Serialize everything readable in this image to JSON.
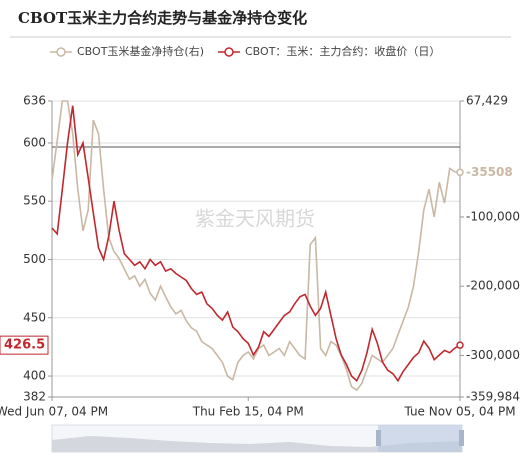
{
  "chart_data": {
    "type": "line",
    "title": "CBOT玉米主力合约走势与基金净持仓变化",
    "watermark": "紫金天风期货",
    "categories": [
      "Wed Jun 07, 04 PM",
      null,
      null,
      null,
      null,
      null,
      null,
      null,
      null,
      null,
      null,
      null,
      null,
      null,
      null,
      null,
      null,
      null,
      null,
      null,
      null,
      null,
      null,
      null,
      null,
      null,
      null,
      null,
      null,
      null,
      null,
      null,
      null,
      null,
      null,
      null,
      null,
      null,
      "Thu Feb 15, 04 PM",
      null,
      null,
      null,
      null,
      null,
      null,
      null,
      null,
      null,
      null,
      null,
      null,
      null,
      null,
      null,
      null,
      null,
      null,
      null,
      null,
      null,
      null,
      null,
      null,
      null,
      null,
      null,
      null,
      null,
      null,
      null,
      null,
      null,
      null,
      null,
      null,
      null,
      null,
      null,
      null,
      "Tue Nov 05, 04 PM"
    ],
    "series": [
      {
        "name": "CBOT玉米基金净持仓(右)",
        "color": "#c9b8a4",
        "axis": "y2",
        "values": [
          -46700,
          10000,
          67429,
          67429,
          20000,
          -60000,
          -120000,
          -90000,
          40000,
          20000,
          -60000,
          -130000,
          -150000,
          -160000,
          -175000,
          -190000,
          -185000,
          -200000,
          -190000,
          -210000,
          -220000,
          -200000,
          -215000,
          -230000,
          -240000,
          -235000,
          -250000,
          -260000,
          -265000,
          -280000,
          -285000,
          -290000,
          -300000,
          -310000,
          -330000,
          -335000,
          -310000,
          -300000,
          -295000,
          -305000,
          -290000,
          -285000,
          -300000,
          -295000,
          -290000,
          -300000,
          -280000,
          -290000,
          -300000,
          -305000,
          -140000,
          -130000,
          -290000,
          -300000,
          -280000,
          -285000,
          -300000,
          -320000,
          -345000,
          -350000,
          -340000,
          -320000,
          -300000,
          -305000,
          -310000,
          -300000,
          -290000,
          -270000,
          -250000,
          -230000,
          -200000,
          -150000,
          -90000,
          -60000,
          -100000,
          -50000,
          -80000,
          -30000,
          -35000,
          -35508
        ]
      },
      {
        "name": "CBOT：玉米：主力合约：收盘价（日）",
        "color": "#c0282e",
        "values": [
          527,
          522,
          560,
          600,
          632,
          590,
          600,
          570,
          540,
          510,
          500,
          520,
          550,
          525,
          505,
          500,
          495,
          498,
          492,
          500,
          495,
          498,
          490,
          492,
          488,
          485,
          482,
          475,
          470,
          472,
          462,
          458,
          452,
          448,
          455,
          442,
          438,
          432,
          428,
          418,
          425,
          438,
          434,
          440,
          446,
          452,
          455,
          462,
          468,
          470,
          460,
          452,
          458,
          472,
          452,
          432,
          418,
          410,
          400,
          396,
          405,
          420,
          440,
          428,
          412,
          405,
          402,
          396,
          404,
          410,
          416,
          420,
          430,
          424,
          414,
          418,
          422,
          420,
          424,
          426.5
        ]
      }
    ],
    "ylim": [
      382,
      636
    ],
    "yticks": [
      382,
      400,
      450,
      500,
      550,
      600,
      636
    ],
    "y2lim": [
      -359984,
      67429
    ],
    "y2ticks": [
      {
        "value": -359984,
        "label": "-359,984"
      },
      {
        "value": -300000,
        "label": "-300,000"
      },
      {
        "value": -200000,
        "label": "-200,000"
      },
      {
        "value": -100000,
        "label": "-100,000"
      },
      {
        "value": 67429,
        "label": "67,429"
      }
    ],
    "grid": true,
    "legend": "top"
  }
}
